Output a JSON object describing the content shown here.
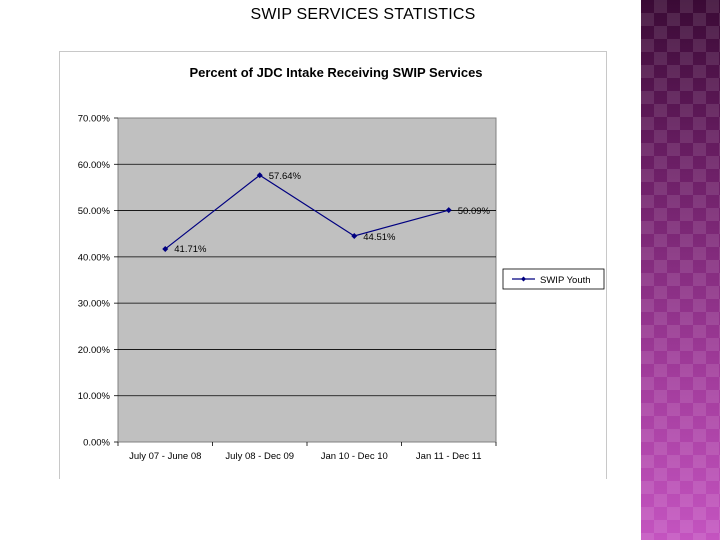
{
  "slide": {
    "title": "SWIP SERVICES STATISTICS"
  },
  "colors": {
    "plot_background": "#c0c0c0",
    "series_line": "#000080",
    "side_strip": "#8a2a86"
  },
  "chart_data": {
    "type": "line",
    "title": "Percent of JDC Intake Receiving SWIP Services",
    "categories": [
      "July 07 - June 08",
      "July 08 - Dec 09",
      "Jan 10 - Dec 10",
      "Jan 11 - Dec 11"
    ],
    "series": [
      {
        "name": "SWIP Youth",
        "values": [
          41.71,
          57.64,
          44.51,
          50.09
        ],
        "data_labels": [
          "41.71%",
          "57.64%",
          "44.51%",
          "50.09%"
        ],
        "marker": "diamond"
      }
    ],
    "ylim": [
      0,
      70
    ],
    "yticks": [
      0,
      10,
      20,
      30,
      40,
      50,
      60,
      70
    ],
    "ytick_labels": [
      "0.00%",
      "10.00%",
      "20.00%",
      "30.00%",
      "40.00%",
      "50.00%",
      "60.00%",
      "70.00%"
    ],
    "xlabel": "",
    "ylabel": "",
    "grid": "horizontal",
    "legend": "right"
  }
}
